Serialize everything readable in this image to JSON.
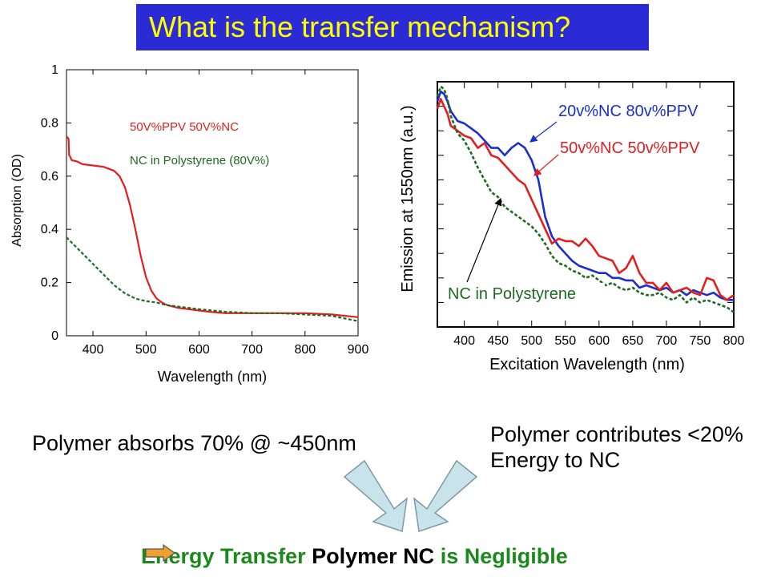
{
  "title": "What is the transfer mechanism?",
  "colors": {
    "title_bg": "#2b2bd6",
    "title_text": "#ffff00",
    "red": "#e02020",
    "blue": "#1a2fcc",
    "green": "#1f6a22",
    "conclusion_green": "#1a8a1a",
    "arrow_fill": "#c8e4ea",
    "arrow_stroke": "#7c9aa6",
    "orange_arrow": "#f0a030"
  },
  "notes": {
    "left": "Polymer absorbs 70% @  ~450nm",
    "right_line1": "Polymer contributes <20%",
    "right_line2": "Energy to NC"
  },
  "conclusion": {
    "part1": "Energy Transfer",
    "part2": "Polymer",
    "part3": "NC",
    "part4": "is Negligible"
  },
  "icons": {
    "down_arrows": "block-down-arrow-icon",
    "conclusion_arrow": "right-arrow-icon"
  },
  "chart_data": [
    {
      "type": "line",
      "title": "",
      "xlabel": "Wavelength (nm)",
      "ylabel": "Absorption (OD)",
      "xlim": [
        350,
        900
      ],
      "ylim": [
        0,
        1
      ],
      "xticks": [
        400,
        500,
        600,
        700,
        800,
        900
      ],
      "yticks": [
        0,
        0.2,
        0.4,
        0.6,
        0.8,
        1
      ],
      "ytick_labels": [
        "0",
        "0.2",
        "0.4",
        "0.6",
        "0.8",
        "1"
      ],
      "grid": false,
      "legend": "top-right",
      "series": [
        {
          "name": "50V%PPV 50V%NC",
          "color": "#e02020",
          "dash": false,
          "x": [
            350,
            354,
            355,
            360,
            370,
            380,
            400,
            420,
            440,
            450,
            460,
            470,
            480,
            490,
            500,
            510,
            520,
            530,
            540,
            560,
            580,
            600,
            620,
            650,
            700,
            750,
            800,
            850,
            900
          ],
          "y": [
            0.75,
            0.74,
            0.68,
            0.66,
            0.655,
            0.645,
            0.64,
            0.635,
            0.62,
            0.6,
            0.56,
            0.49,
            0.4,
            0.3,
            0.22,
            0.17,
            0.14,
            0.125,
            0.115,
            0.105,
            0.1,
            0.095,
            0.09,
            0.085,
            0.085,
            0.085,
            0.085,
            0.08,
            0.07
          ]
        },
        {
          "name": "NC in Polystyrene (80V%)",
          "color": "#1f6a22",
          "dash": true,
          "x": [
            350,
            370,
            400,
            420,
            440,
            460,
            480,
            500,
            520,
            540,
            560,
            600,
            650,
            700,
            750,
            800,
            850,
            900
          ],
          "y": [
            0.37,
            0.33,
            0.27,
            0.23,
            0.19,
            0.16,
            0.14,
            0.13,
            0.125,
            0.115,
            0.11,
            0.1,
            0.09,
            0.085,
            0.085,
            0.08,
            0.075,
            0.055
          ]
        }
      ]
    },
    {
      "type": "line",
      "title": "",
      "xlabel": "Excitation Wavelength (nm)",
      "ylabel": "Emission at 1550nm (a.u.)",
      "xlim": [
        360,
        800
      ],
      "ylim": [
        0,
        10
      ],
      "xticks": [
        400,
        450,
        500,
        550,
        600,
        650,
        700,
        750,
        800
      ],
      "yticks": [
        1,
        2,
        3,
        4,
        5,
        6,
        7,
        8,
        9
      ],
      "ytick_labels": [],
      "grid": false,
      "legend": "inline-labels",
      "series": [
        {
          "name": "20v%NC 80v%PPV",
          "color": "#1a2fcc",
          "dash": false,
          "x": [
            360,
            365,
            370,
            375,
            380,
            390,
            400,
            410,
            420,
            430,
            440,
            450,
            460,
            470,
            480,
            490,
            500,
            510,
            520,
            530,
            540,
            550,
            560,
            570,
            580,
            590,
            600,
            610,
            620,
            630,
            640,
            650,
            660,
            670,
            680,
            690,
            700,
            710,
            720,
            730,
            740,
            750,
            760,
            770,
            780,
            790,
            800
          ],
          "y": [
            9.2,
            9.6,
            9.5,
            9.2,
            8.8,
            8.4,
            8.3,
            8.1,
            7.9,
            7.6,
            7.3,
            7.3,
            7.0,
            7.3,
            7.5,
            7.3,
            6.8,
            6.0,
            4.5,
            3.7,
            3.3,
            3.0,
            2.7,
            2.5,
            2.4,
            2.3,
            2.2,
            2.2,
            2.0,
            2.0,
            1.9,
            1.9,
            1.6,
            1.7,
            1.6,
            1.5,
            1.6,
            1.4,
            1.5,
            1.3,
            1.5,
            1.4,
            1.3,
            1.4,
            1.2,
            1.1,
            1.1
          ]
        },
        {
          "name": "50v%NC 50v%PPV",
          "color": "#e02020",
          "dash": false,
          "x": [
            360,
            365,
            370,
            375,
            380,
            390,
            400,
            410,
            420,
            430,
            440,
            450,
            460,
            470,
            480,
            490,
            500,
            510,
            520,
            530,
            540,
            550,
            560,
            570,
            580,
            590,
            600,
            610,
            620,
            630,
            640,
            650,
            660,
            670,
            680,
            690,
            700,
            710,
            720,
            730,
            740,
            750,
            760,
            770,
            780,
            790,
            800
          ],
          "y": [
            8.9,
            9.3,
            9.0,
            8.7,
            8.2,
            8.0,
            7.8,
            7.7,
            7.3,
            7.5,
            7.0,
            6.9,
            6.6,
            6.3,
            6.0,
            5.8,
            5.2,
            4.6,
            4.0,
            3.4,
            3.6,
            3.5,
            3.5,
            3.3,
            3.6,
            3.3,
            2.9,
            2.8,
            2.7,
            2.2,
            2.4,
            2.9,
            2.2,
            1.8,
            1.8,
            1.5,
            1.8,
            1.4,
            1.5,
            1.6,
            1.4,
            1.3,
            2.0,
            1.9,
            1.3,
            1.1,
            1.3
          ]
        },
        {
          "name": "NC in Polystyrene",
          "color": "#1f6a22",
          "dash": true,
          "x": [
            360,
            365,
            370,
            375,
            380,
            390,
            400,
            410,
            420,
            430,
            440,
            450,
            460,
            470,
            480,
            490,
            500,
            510,
            520,
            530,
            540,
            550,
            560,
            570,
            580,
            590,
            600,
            610,
            620,
            630,
            640,
            650,
            660,
            670,
            680,
            690,
            700,
            710,
            720,
            730,
            740,
            750,
            760,
            770,
            780,
            790,
            800
          ],
          "y": [
            9.4,
            9.8,
            9.7,
            9.3,
            8.6,
            7.9,
            7.6,
            7.1,
            6.5,
            6.0,
            5.5,
            5.3,
            4.9,
            4.7,
            4.5,
            4.3,
            4.1,
            3.8,
            3.4,
            2.9,
            2.6,
            2.5,
            2.3,
            2.2,
            2.0,
            2.1,
            1.9,
            1.7,
            1.8,
            1.6,
            1.5,
            1.6,
            1.4,
            1.3,
            1.3,
            1.4,
            1.2,
            1.1,
            1.3,
            1.0,
            1.2,
            1.0,
            1.1,
            1.0,
            0.9,
            0.8,
            0.6
          ]
        }
      ]
    }
  ]
}
